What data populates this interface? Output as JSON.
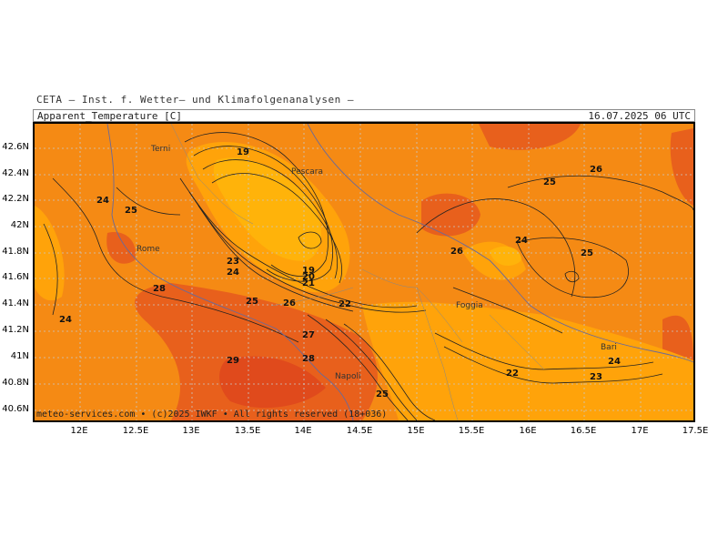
{
  "header": {
    "institute": "CETA – Inst. f. Wetter– und Klimafolgenanalysen –",
    "variable": "Apparent_Temperature [C]",
    "valid_time": "16.07.2025 06 UTC"
  },
  "credits": "meteo-services.com • (c)2025 IWKF • All rights reserved (18+036)",
  "axes": {
    "lat_labels": [
      "42.6N",
      "42.4N",
      "42.2N",
      "42N",
      "41.8N",
      "41.6N",
      "41.4N",
      "41.2N",
      "41N",
      "40.8N",
      "40.6N"
    ],
    "lon_labels": [
      "12E",
      "12.5E",
      "13E",
      "13.5E",
      "14E",
      "14.5E",
      "15E",
      "15.5E",
      "16E",
      "16.5E",
      "17E",
      "17.5E"
    ]
  },
  "cities": [
    "Terni",
    "Pescara",
    "Rome",
    "Foggia",
    "Napoli",
    "Bari"
  ],
  "contour_labels": [
    "19",
    "24",
    "25",
    "23",
    "24",
    "28",
    "24",
    "25",
    "26",
    "22",
    "19",
    "20",
    "21",
    "27",
    "29",
    "28",
    "25",
    "26",
    "24",
    "25",
    "25",
    "26",
    "22",
    "23",
    "24"
  ],
  "colors": {
    "temp_19_20": "#ffb30a",
    "temp_21_23": "#ffa30a",
    "temp_24_26": "#f58a14",
    "temp_27_29": "#e8601c",
    "temp_30_plus": "#e04a1c"
  }
}
